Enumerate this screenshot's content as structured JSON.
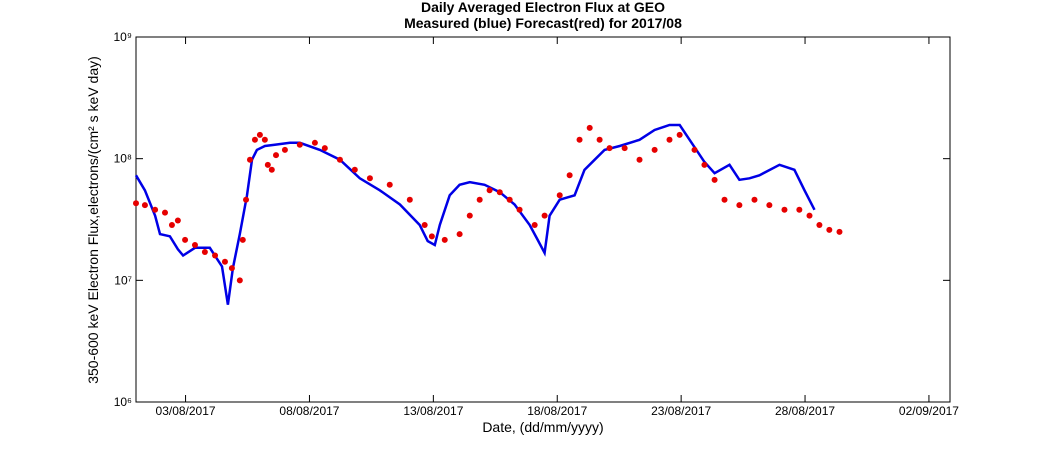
{
  "chart_data": {
    "type": "line",
    "title": "Daily Averaged Electron Flux at GEO",
    "subtitle": "Measured (blue) Forecast(red) for 2017/08",
    "x_label": "Date, (dd/mm/yyyy)",
    "y_label": "350-600 keV Electron Flux,electrons/(cm² s keV day)",
    "log_y": true,
    "xlim": [
      1,
      33.85
    ],
    "ylim": [
      1000000,
      1000000000
    ],
    "xticks": [
      {
        "value": 3,
        "label": "03/08/2017"
      },
      {
        "value": 8,
        "label": "08/08/2017"
      },
      {
        "value": 13,
        "label": "13/08/2017"
      },
      {
        "value": 18,
        "label": "18/08/2017"
      },
      {
        "value": 23,
        "label": "23/08/2017"
      },
      {
        "value": 28,
        "label": "28/08/2017"
      },
      {
        "value": 33,
        "label": "02/09/2017"
      }
    ],
    "yticks": [
      {
        "value": 1000000,
        "label": "10⁶"
      },
      {
        "value": 10000000,
        "label": "10⁷"
      },
      {
        "value": 100000000,
        "label": "10⁸"
      },
      {
        "value": 1000000000,
        "label": "10⁹"
      }
    ],
    "series": [
      {
        "style": "line",
        "color": "#0000e6",
        "x": [
          1.0,
          1.36,
          1.77,
          1.97,
          2.37,
          2.69,
          2.9,
          3.38,
          3.98,
          4.47,
          4.71,
          4.91,
          5.19,
          5.48,
          5.68,
          5.88,
          6.2,
          6.6,
          7.21,
          7.61,
          8.42,
          9.23,
          10.03,
          10.84,
          11.65,
          12.45,
          12.77,
          13.06,
          13.26,
          13.66,
          14.06,
          14.47,
          15.07,
          15.68,
          16.28,
          16.89,
          17.21,
          17.49,
          17.69,
          18.1,
          18.7,
          19.1,
          19.51,
          19.91,
          20.52,
          21.32,
          21.93,
          22.53,
          22.94,
          23.34,
          23.94,
          24.35,
          24.95,
          25.35,
          25.76,
          26.16,
          26.97,
          27.57,
          27.98,
          28.38
        ],
        "values": [
          73000000,
          55000000,
          34000000,
          24000000,
          23000000,
          18000000,
          16000000,
          18500000,
          18500000,
          13000000,
          6300000,
          12600000,
          24000000,
          50000000,
          98000000,
          118000000,
          127000000,
          130000000,
          135000000,
          135000000,
          118000000,
          98000000,
          69000000,
          55000000,
          42000000,
          28500000,
          21000000,
          19500000,
          28500000,
          50000000,
          61000000,
          64000000,
          61000000,
          53000000,
          42000000,
          28500000,
          21500000,
          16800000,
          34000000,
          46000000,
          50000000,
          81000000,
          98000000,
          118000000,
          127000000,
          143000000,
          172000000,
          189000000,
          189000000,
          143000000,
          94000000,
          76000000,
          89000000,
          67000000,
          69000000,
          73000000,
          89000000,
          81000000,
          55000000,
          38000000
        ]
      },
      {
        "style": "dots",
        "color": "#e60000",
        "x": [
          1.0,
          1.36,
          1.77,
          2.17,
          2.45,
          2.69,
          2.98,
          3.38,
          3.78,
          4.19,
          4.59,
          4.87,
          5.19,
          5.31,
          5.44,
          5.6,
          5.8,
          6.0,
          6.2,
          6.32,
          6.48,
          6.65,
          7.01,
          7.61,
          8.22,
          8.62,
          9.23,
          9.83,
          10.44,
          11.24,
          12.05,
          12.65,
          12.94,
          13.46,
          14.06,
          14.47,
          14.87,
          15.27,
          15.68,
          16.08,
          16.48,
          17.09,
          17.49,
          18.1,
          18.5,
          18.9,
          19.31,
          19.71,
          20.11,
          20.72,
          21.32,
          21.93,
          22.53,
          22.94,
          23.54,
          23.94,
          24.35,
          24.75,
          25.35,
          25.96,
          26.56,
          27.17,
          27.77,
          28.18,
          28.58,
          28.98,
          29.39
        ],
        "values": [
          43000000,
          41500000,
          38000000,
          36000000,
          28500000,
          31000000,
          21500000,
          19500000,
          17100000,
          16000000,
          14200000,
          12600000,
          10000000,
          21500000,
          46000000,
          98000000,
          143000000,
          157000000,
          143000000,
          89000000,
          81000000,
          107000000,
          118000000,
          130000000,
          135000000,
          122000000,
          98000000,
          81000000,
          69000000,
          61000000,
          46000000,
          28500000,
          23000000,
          21500000,
          24000000,
          34000000,
          46000000,
          55000000,
          53000000,
          46000000,
          38000000,
          28500000,
          34000000,
          50000000,
          73000000,
          143000000,
          179000000,
          143000000,
          122000000,
          122000000,
          98000000,
          118000000,
          143000000,
          157000000,
          118000000,
          89000000,
          67000000,
          46000000,
          41500000,
          46000000,
          41500000,
          38000000,
          38000000,
          34000000,
          28500000,
          26000000,
          25000000
        ]
      }
    ]
  }
}
